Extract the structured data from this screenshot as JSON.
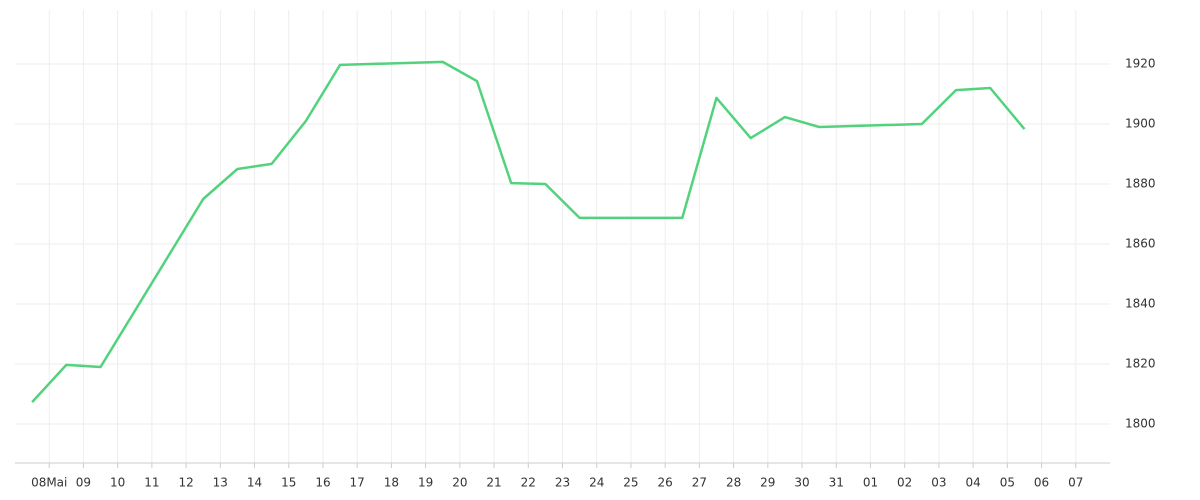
{
  "chart_data": {
    "type": "line",
    "x": [
      7.5,
      8.5,
      9.5,
      12.5,
      13.5,
      14.5,
      15.5,
      16.5,
      19.5,
      20.5,
      21.5,
      22.5,
      23.5,
      26.5,
      27.5,
      28.5,
      29.5,
      30.5,
      33.5,
      34.5,
      35.5,
      36.5
    ],
    "series": [
      {
        "color": "#53d27d",
        "values": [
          1807.3,
          1819.7,
          1819,
          1875,
          1885,
          1886.7,
          1901,
          1919.7,
          1920.7,
          1914.3,
          1880.3,
          1880,
          1868.7,
          1868.7,
          1908.7,
          1895.3,
          1902.3,
          1899,
          1900,
          1911.3,
          1912,
          1898.3
        ]
      }
    ],
    "xlim": [
      7,
      39
    ],
    "xticks": [
      {
        "value": 8,
        "label": "08Mai"
      },
      {
        "value": 9,
        "label": "09"
      },
      10,
      11,
      12,
      13,
      14,
      15,
      16,
      17,
      18,
      19,
      20,
      21,
      22,
      23,
      24,
      25,
      26,
      27,
      28,
      29,
      30,
      31,
      {
        "value": 32,
        "label": "01"
      },
      {
        "value": 33,
        "label": "02"
      },
      {
        "value": 34,
        "label": "03"
      },
      {
        "value": 35,
        "label": "04"
      },
      {
        "value": 36,
        "label": "05"
      },
      {
        "value": 37,
        "label": "06"
      },
      {
        "value": 38,
        "label": "07"
      }
    ],
    "ylim": [
      1787,
      1938
    ],
    "yticks": [
      1800,
      1820,
      1840,
      1860,
      1880,
      1900,
      1920
    ],
    "grid": true
  }
}
